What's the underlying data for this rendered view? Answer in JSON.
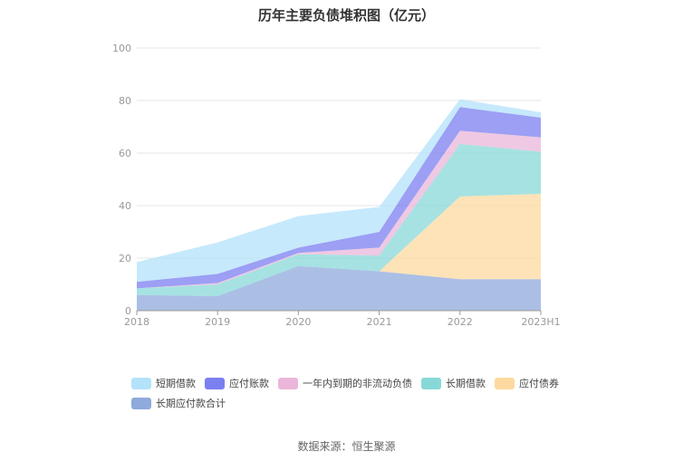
{
  "chart_data": {
    "type": "area",
    "stacked": true,
    "title": "历年主要负债堆积图（亿元）",
    "x": [
      "2018",
      "2019",
      "2020",
      "2021",
      "2022",
      "2023H1"
    ],
    "ylim": [
      0,
      100
    ],
    "yticks": [
      0,
      20,
      40,
      60,
      80,
      100
    ],
    "grid": true,
    "legend_position": "bottom",
    "series": [
      {
        "name": "长期应付款合计",
        "color": "#8faadc",
        "values": [
          6,
          5.5,
          17,
          15,
          12,
          12
        ]
      },
      {
        "name": "应付债券",
        "color": "#fdd9a0",
        "values": [
          0,
          0,
          0,
          0,
          31.5,
          32.5
        ]
      },
      {
        "name": "长期借款",
        "color": "#88d8d8",
        "values": [
          2.5,
          4.5,
          4.5,
          6,
          20,
          16
        ]
      },
      {
        "name": "一年内到期的非流动负债",
        "color": "#eab6d9",
        "values": [
          0,
          0.5,
          0.5,
          3,
          5,
          5.5
        ]
      },
      {
        "name": "应付账款",
        "color": "#7b7ff0",
        "values": [
          2.5,
          3.5,
          2,
          6,
          9,
          7.5
        ]
      },
      {
        "name": "短期借款",
        "color": "#b3e2fb",
        "values": [
          7.5,
          12,
          12,
          9.5,
          3,
          2
        ]
      }
    ],
    "legend_order": [
      "短期借款",
      "应付账款",
      "一年内到期的非流动负债",
      "长期借款",
      "应付债券",
      "长期应付款合计"
    ]
  },
  "source_text": "数据来源：恒生聚源"
}
